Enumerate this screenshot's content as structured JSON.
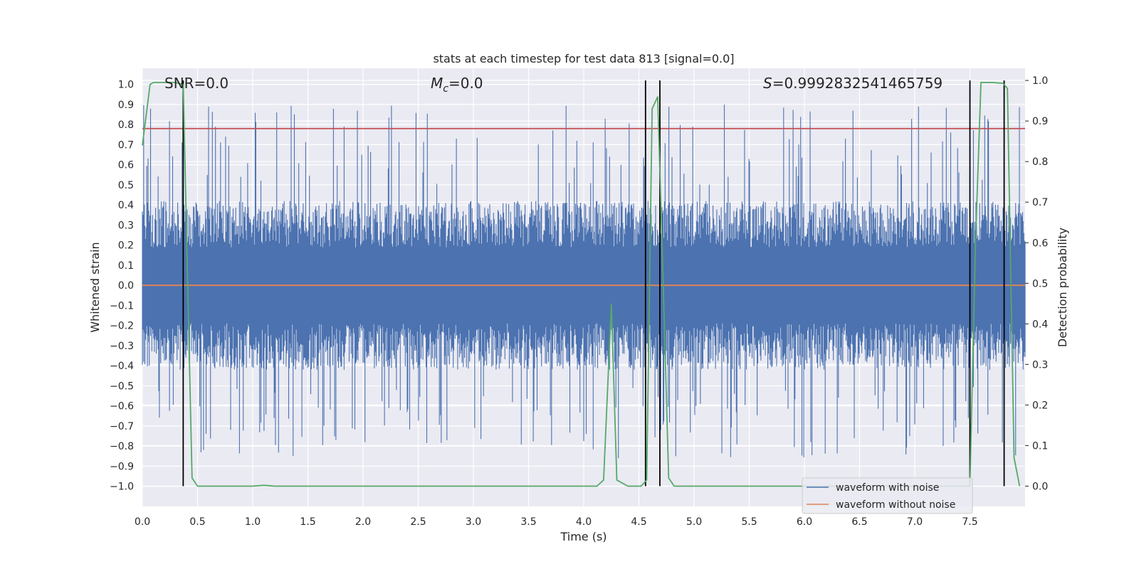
{
  "chart_data": {
    "type": "line",
    "title": "stats at each timestep for test data 813 [signal=0.0]",
    "xlabel": "Time (s)",
    "ylabel_left": "Whitened strain",
    "ylabel_right": "Detection probability",
    "xlim": [
      0.0,
      8.0
    ],
    "ylim_left": [
      -1.1,
      1.08
    ],
    "ylim_right": [
      -0.05,
      1.03
    ],
    "x_ticks": [
      "0.0",
      "0.5",
      "1.0",
      "1.5",
      "2.0",
      "2.5",
      "3.0",
      "3.5",
      "4.0",
      "4.5",
      "5.0",
      "5.5",
      "6.0",
      "6.5",
      "7.0",
      "7.5"
    ],
    "y_ticks_left": [
      "1.0",
      "0.9",
      "0.8",
      "0.7",
      "0.6",
      "0.5",
      "0.4",
      "0.3",
      "0.2",
      "0.1",
      "0.0",
      "-0.1",
      "-0.2",
      "-0.3",
      "-0.4",
      "-0.5",
      "-0.6",
      "-0.7",
      "-0.8",
      "-0.9",
      "-1.0"
    ],
    "y_ticks_right": [
      "1.0",
      "0.9",
      "0.8",
      "0.7",
      "0.6",
      "0.5",
      "0.4",
      "0.3",
      "0.2",
      "0.1",
      "0.0"
    ],
    "annotations": {
      "snr": "SNR=0.0",
      "mc_symbol": "M",
      "mc_sub": "c",
      "mc_value": "=0.0",
      "s_symbol": "S",
      "s_value": "=0.9992832541465759"
    },
    "threshold_left": 0.78,
    "noise_envelope": {
      "typical_low": -0.42,
      "typical_high": 0.42,
      "max": 0.9,
      "min": -0.87
    },
    "series": [
      {
        "name": "waveform with noise",
        "color": "#4c72b0"
      },
      {
        "name": "waveform without noise",
        "color": "#dd8452",
        "values_constant": 0.0
      },
      {
        "color": "#55a868",
        "axis": "right",
        "x": [
          0.0,
          0.07,
          0.1,
          0.2,
          0.3,
          0.37,
          0.41,
          0.45,
          0.5,
          1.0,
          1.1,
          1.2,
          2.0,
          3.0,
          4.0,
          4.12,
          4.18,
          4.25,
          4.3,
          4.4,
          4.52,
          4.57,
          4.62,
          4.67,
          4.72,
          4.77,
          4.82,
          5.0,
          6.0,
          7.0,
          7.5,
          7.55,
          7.6,
          7.7,
          7.8,
          7.84,
          7.9,
          7.95
        ],
        "values": [
          0.84,
          0.99,
          0.995,
          0.995,
          0.995,
          0.99,
          0.5,
          0.02,
          0.0,
          0.0,
          0.002,
          0.0,
          0.0,
          0.0,
          0.0,
          0.0,
          0.015,
          0.45,
          0.015,
          0.0,
          0.0,
          0.015,
          0.93,
          0.96,
          0.5,
          0.02,
          0.0,
          0.0,
          0.0,
          0.0,
          0.0,
          0.6,
          0.995,
          0.995,
          0.993,
          0.98,
          0.07,
          0.0
        ]
      }
    ],
    "detection_markers_x": [
      0.37,
      4.56,
      4.69,
      7.5,
      7.81
    ],
    "grid": true,
    "legend_position": "lower-right"
  }
}
